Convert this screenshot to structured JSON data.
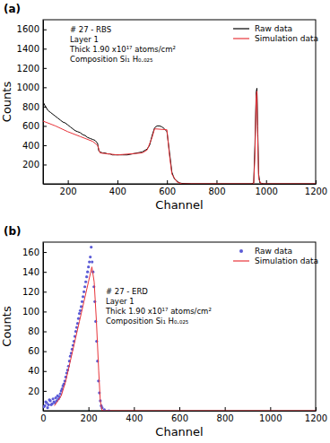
{
  "chart_data": [
    {
      "type": "line",
      "title": "(a)",
      "x_label": "Channel",
      "y_label": "Counts",
      "annotations": [
        "# 27 - RBS",
        "Layer 1",
        "Thick 1.90 x10¹⁷ atoms/cm²",
        "Composition Si₁ H₀.₀₂₅"
      ],
      "xlim": [
        100,
        1200
      ],
      "xticks": [
        200,
        400,
        600,
        800,
        1000,
        1200
      ],
      "ylim": [
        0,
        1700
      ],
      "yticks": [
        200,
        400,
        600,
        800,
        1000,
        1200,
        1400,
        1600
      ],
      "legend": "top-right",
      "grid": false,
      "series": [
        {
          "name": "Raw data",
          "type": "line",
          "color": "#000000",
          "line_style": "solid",
          "x": [
            100,
            110,
            120,
            130,
            140,
            150,
            160,
            170,
            180,
            190,
            200,
            210,
            220,
            230,
            240,
            250,
            260,
            270,
            280,
            290,
            300,
            310,
            320,
            325,
            330,
            340,
            350,
            360,
            370,
            380,
            390,
            400,
            420,
            440,
            460,
            480,
            500,
            520,
            530,
            540,
            550,
            560,
            570,
            580,
            590,
            600,
            610,
            620,
            630,
            640,
            650,
            660,
            700,
            800,
            900,
            940,
            950,
            955,
            960,
            963,
            966,
            970,
            975,
            990,
            1100,
            1200
          ],
          "values": [
            850,
            800,
            760,
            740,
            720,
            700,
            680,
            660,
            640,
            630,
            610,
            590,
            570,
            550,
            540,
            530,
            510,
            500,
            480,
            470,
            460,
            450,
            420,
            340,
            330,
            320,
            320,
            310,
            310,
            300,
            300,
            300,
            300,
            300,
            310,
            320,
            330,
            360,
            400,
            500,
            580,
            600,
            600,
            590,
            570,
            540,
            330,
            120,
            50,
            30,
            10,
            5,
            0,
            0,
            0,
            0,
            10,
            400,
            950,
            990,
            600,
            100,
            10,
            0,
            0,
            0
          ]
        },
        {
          "name": "Simulation data",
          "type": "line",
          "color": "#e8343a",
          "line_style": "solid",
          "x": [
            100,
            150,
            200,
            250,
            300,
            320,
            330,
            400,
            500,
            520,
            540,
            550,
            600,
            610,
            620,
            640,
            660,
            950,
            955,
            960,
            963,
            966,
            970,
            980,
            1200
          ],
          "values": [
            650,
            600,
            540,
            490,
            440,
            400,
            320,
            300,
            320,
            350,
            480,
            570,
            560,
            300,
            100,
            20,
            0,
            0,
            300,
            900,
            960,
            500,
            50,
            0,
            0
          ]
        }
      ]
    },
    {
      "type": "line",
      "title": "(b)",
      "x_label": "Channel",
      "y_label": "Counts",
      "annotations": [
        "# 27 - ERD",
        "Layer 1",
        "Thick 1.90 x10¹⁷ atoms/cm²",
        "Composition Si₁ H₀.₀₂₅"
      ],
      "xlim": [
        0,
        1200
      ],
      "xticks": [
        0,
        200,
        400,
        600,
        800,
        1000,
        1200
      ],
      "ylim": [
        0,
        170
      ],
      "yticks": [
        20,
        40,
        60,
        80,
        100,
        120,
        140,
        160
      ],
      "legend": "top-right",
      "grid": false,
      "series": [
        {
          "name": "Raw data",
          "type": "scatter",
          "marker": "circle",
          "color": "#5b5bd6",
          "x": [
            4,
            8,
            12,
            16,
            20,
            24,
            28,
            32,
            36,
            40,
            44,
            48,
            52,
            56,
            60,
            64,
            68,
            72,
            76,
            80,
            84,
            88,
            92,
            96,
            100,
            104,
            108,
            112,
            116,
            120,
            124,
            128,
            132,
            136,
            140,
            144,
            148,
            152,
            156,
            160,
            164,
            168,
            172,
            176,
            180,
            184,
            188,
            192,
            196,
            200,
            204,
            208,
            212,
            216,
            220,
            224,
            228,
            232,
            236,
            240,
            244,
            248,
            252,
            256,
            260,
            270,
            290
          ],
          "values": [
            4,
            5,
            9,
            8,
            3,
            6,
            11,
            10,
            6,
            7,
            12,
            9,
            8,
            13,
            10,
            15,
            12,
            14,
            17,
            20,
            22,
            25,
            27,
            30,
            34,
            38,
            41,
            45,
            50,
            55,
            58,
            62,
            66,
            70,
            75,
            80,
            84,
            88,
            93,
            98,
            101,
            105,
            110,
            115,
            120,
            125,
            130,
            135,
            140,
            145,
            150,
            155,
            165,
            150,
            140,
            125,
            110,
            90,
            70,
            50,
            30,
            18,
            10,
            5,
            3,
            1,
            0
          ]
        },
        {
          "name": "Simulation data",
          "type": "line",
          "color": "#e8343a",
          "line_style": "solid",
          "x": [
            50,
            80,
            100,
            120,
            140,
            160,
            180,
            200,
            215,
            225,
            235,
            245,
            252,
            260,
            300,
            1200
          ],
          "values": [
            5,
            15,
            30,
            50,
            70,
            90,
            110,
            130,
            145,
            130,
            90,
            40,
            10,
            0,
            0,
            0
          ]
        }
      ]
    }
  ]
}
